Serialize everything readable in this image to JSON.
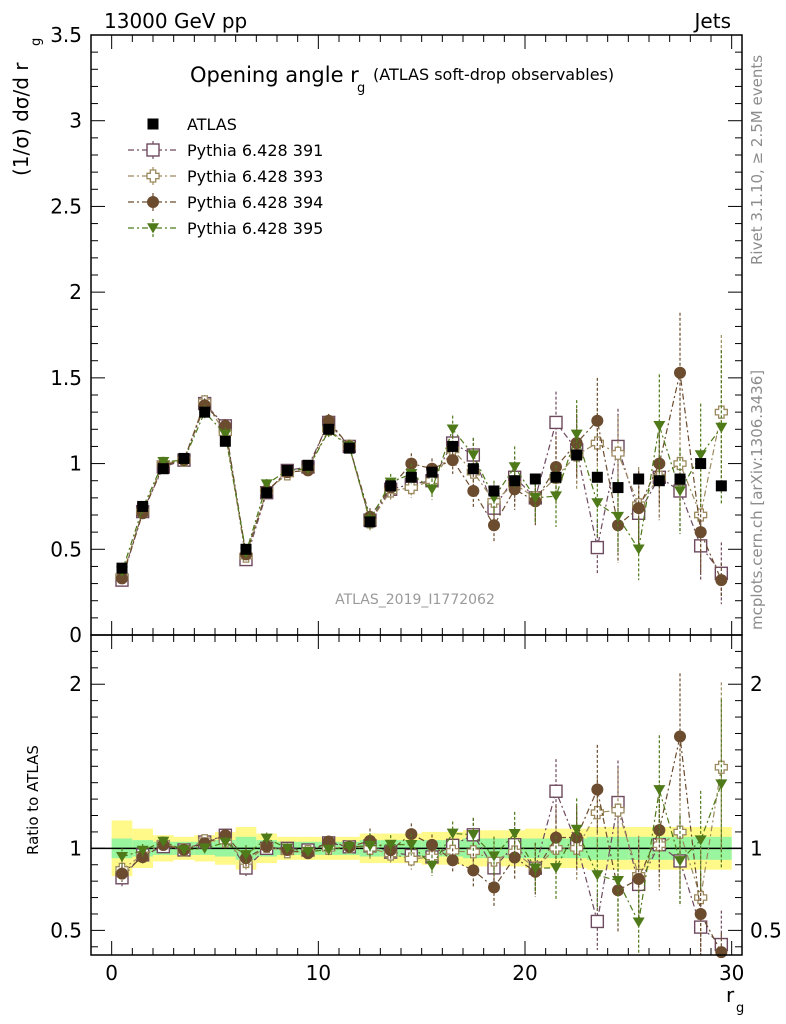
{
  "header": {
    "left": "13000 GeV pp",
    "right": "Jets"
  },
  "side": {
    "rivet": "Rivet 3.1.10, ≥ 2.5M events",
    "mcplots": "mcplots.cern.ch [arXiv:1306.3436]"
  },
  "chart_data": {
    "type": "scatter",
    "title_main": "Opening angle r",
    "title_sub": "g",
    "title_rest": "(ATLAS soft-drop observables)",
    "ylabel": "(1/σ) dσ/d r",
    "ylabel_sub": "g",
    "ratio_ylabel": "Ratio to ATLAS",
    "xlabel": "r",
    "xlabel_sub": "g",
    "analysis_label": "ATLAS_2019_I1772062",
    "xlim": [
      -1,
      30.5
    ],
    "ylim": [
      0,
      3.5
    ],
    "ratio_ylim": [
      0.35,
      2.3
    ],
    "x_ticks": [
      "0",
      "10",
      "20",
      "30"
    ],
    "y_ticks": [
      "0",
      "0.5",
      "1",
      "1.5",
      "2",
      "2.5",
      "3",
      "3.5"
    ],
    "ratio_ticks": [
      "0.5",
      "1",
      "2"
    ],
    "x": [
      0.5,
      1.5,
      2.5,
      3.5,
      4.5,
      5.5,
      6.5,
      7.5,
      8.5,
      9.5,
      10.5,
      11.5,
      12.5,
      13.5,
      14.5,
      15.5,
      16.5,
      17.5,
      18.5,
      19.5,
      20.5,
      21.5,
      22.5,
      23.5,
      24.5,
      25.5,
      26.5,
      27.5,
      28.5,
      29.5
    ],
    "data": {
      "name": "ATLAS",
      "color": "#000000",
      "values": [
        0.39,
        0.75,
        0.97,
        1.03,
        1.3,
        1.13,
        0.5,
        0.83,
        0.96,
        0.99,
        1.2,
        1.09,
        0.66,
        0.87,
        0.92,
        0.95,
        1.1,
        0.97,
        0.84,
        0.9,
        0.91,
        0.92,
        1.05,
        0.92,
        0.86,
        0.91,
        0.9,
        0.91,
        1.0,
        0.87
      ],
      "ratio_band_inner": [
        0.06,
        0.05,
        0.04,
        0.04,
        0.04,
        0.05,
        0.07,
        0.05,
        0.04,
        0.04,
        0.04,
        0.04,
        0.05,
        0.05,
        0.05,
        0.05,
        0.05,
        0.06,
        0.06,
        0.06,
        0.06,
        0.06,
        0.06,
        0.07,
        0.07,
        0.07,
        0.07,
        0.07,
        0.07,
        0.07
      ],
      "ratio_band_outer": [
        0.17,
        0.12,
        0.08,
        0.07,
        0.08,
        0.1,
        0.13,
        0.09,
        0.07,
        0.07,
        0.07,
        0.07,
        0.09,
        0.09,
        0.09,
        0.1,
        0.1,
        0.11,
        0.11,
        0.11,
        0.12,
        0.12,
        0.12,
        0.13,
        0.13,
        0.13,
        0.13,
        0.13,
        0.13,
        0.13
      ]
    },
    "series": [
      {
        "name": "Pythia 6.428 391",
        "color": "#6e4a5e",
        "marker": "open-square",
        "values": [
          0.32,
          0.72,
          0.98,
          1.02,
          1.35,
          1.22,
          0.44,
          0.83,
          0.96,
          0.98,
          1.24,
          1.1,
          0.67,
          0.85,
          0.88,
          0.9,
          1.12,
          1.05,
          0.74,
          0.92,
          0.8,
          1.24,
          1.08,
          0.51,
          1.1,
          0.71,
          0.92,
          0.84,
          0.52,
          0.36
        ],
        "errors": [
          0.02,
          0.03,
          0.03,
          0.03,
          0.04,
          0.04,
          0.03,
          0.03,
          0.03,
          0.03,
          0.04,
          0.04,
          0.05,
          0.05,
          0.06,
          0.06,
          0.08,
          0.1,
          0.1,
          0.12,
          0.14,
          0.18,
          0.2,
          0.16,
          0.22,
          0.22,
          0.25,
          0.25,
          0.2,
          0.18
        ]
      },
      {
        "name": "Pythia 6.428 393",
        "color": "#9c8a5e",
        "marker": "open-cross",
        "values": [
          0.34,
          0.72,
          1.0,
          1.02,
          1.36,
          1.18,
          0.46,
          0.84,
          0.94,
          0.97,
          1.2,
          1.1,
          0.66,
          0.84,
          0.86,
          0.9,
          1.08,
          0.95,
          0.78,
          0.88,
          0.8,
          0.92,
          1.05,
          1.12,
          1.06,
          0.76,
          0.92,
          1.0,
          0.7,
          1.3
        ],
        "errors": [
          0.02,
          0.03,
          0.03,
          0.03,
          0.04,
          0.04,
          0.03,
          0.03,
          0.03,
          0.03,
          0.04,
          0.04,
          0.05,
          0.05,
          0.06,
          0.06,
          0.08,
          0.1,
          0.1,
          0.12,
          0.14,
          0.18,
          0.2,
          0.2,
          0.22,
          0.22,
          0.25,
          0.3,
          0.3,
          0.45
        ]
      },
      {
        "name": "Pythia 6.428 394",
        "color": "#6b4c2e",
        "marker": "filled-circle",
        "values": [
          0.33,
          0.71,
          0.99,
          1.02,
          1.34,
          1.22,
          0.47,
          0.84,
          0.95,
          0.96,
          1.25,
          1.1,
          0.69,
          0.86,
          1.0,
          0.97,
          1.02,
          0.84,
          0.64,
          0.85,
          0.78,
          0.98,
          1.12,
          1.25,
          0.64,
          0.74,
          1.0,
          1.53,
          0.6,
          0.32
        ],
        "errors": [
          0.02,
          0.03,
          0.03,
          0.03,
          0.04,
          0.04,
          0.03,
          0.03,
          0.03,
          0.03,
          0.04,
          0.04,
          0.05,
          0.05,
          0.06,
          0.06,
          0.08,
          0.1,
          0.1,
          0.12,
          0.14,
          0.18,
          0.2,
          0.25,
          0.22,
          0.22,
          0.25,
          0.35,
          0.25,
          0.1
        ]
      },
      {
        "name": "Pythia 6.428 395",
        "color": "#4f7a1a",
        "marker": "filled-triangle-down",
        "values": [
          0.37,
          0.74,
          1.01,
          1.02,
          1.3,
          1.17,
          0.48,
          0.88,
          0.96,
          0.97,
          1.19,
          1.1,
          0.67,
          0.89,
          0.94,
          0.85,
          1.2,
          1.05,
          0.8,
          0.98,
          0.8,
          0.81,
          1.17,
          0.77,
          0.69,
          0.5,
          1.22,
          0.84,
          1.05,
          1.21
        ],
        "errors": [
          0.02,
          0.03,
          0.03,
          0.03,
          0.04,
          0.04,
          0.03,
          0.03,
          0.03,
          0.03,
          0.04,
          0.04,
          0.05,
          0.05,
          0.06,
          0.06,
          0.08,
          0.1,
          0.1,
          0.12,
          0.14,
          0.18,
          0.2,
          0.2,
          0.22,
          0.18,
          0.3,
          0.25,
          0.3,
          0.45
        ]
      }
    ]
  }
}
